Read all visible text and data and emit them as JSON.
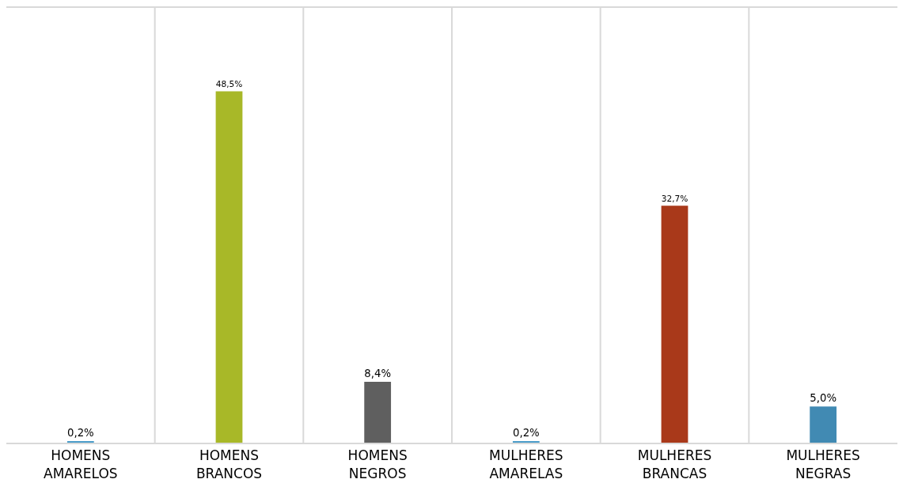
{
  "chart_data": {
    "type": "bar",
    "categories": [
      "HOMENS AMARELOS",
      "HOMENS BRANCOS",
      "HOMENS NEGROS",
      "MULHERES AMARELAS",
      "MULHERES BRANCAS",
      "MULHERES NEGRAS"
    ],
    "values": [
      0.2,
      48.5,
      8.4,
      0.2,
      32.7,
      5.0
    ],
    "colors": [
      "#4a9cc9",
      "#a8b828",
      "#5f5f5f",
      "#4a9cc9",
      "#a9391a",
      "#418ab3"
    ],
    "value_labels": [
      "0,2%",
      "48,5%",
      "8,4%",
      "0,2%",
      "32,7%",
      "5,0%"
    ],
    "ylim": [
      0,
      60
    ],
    "grid": "x",
    "legend": false
  }
}
